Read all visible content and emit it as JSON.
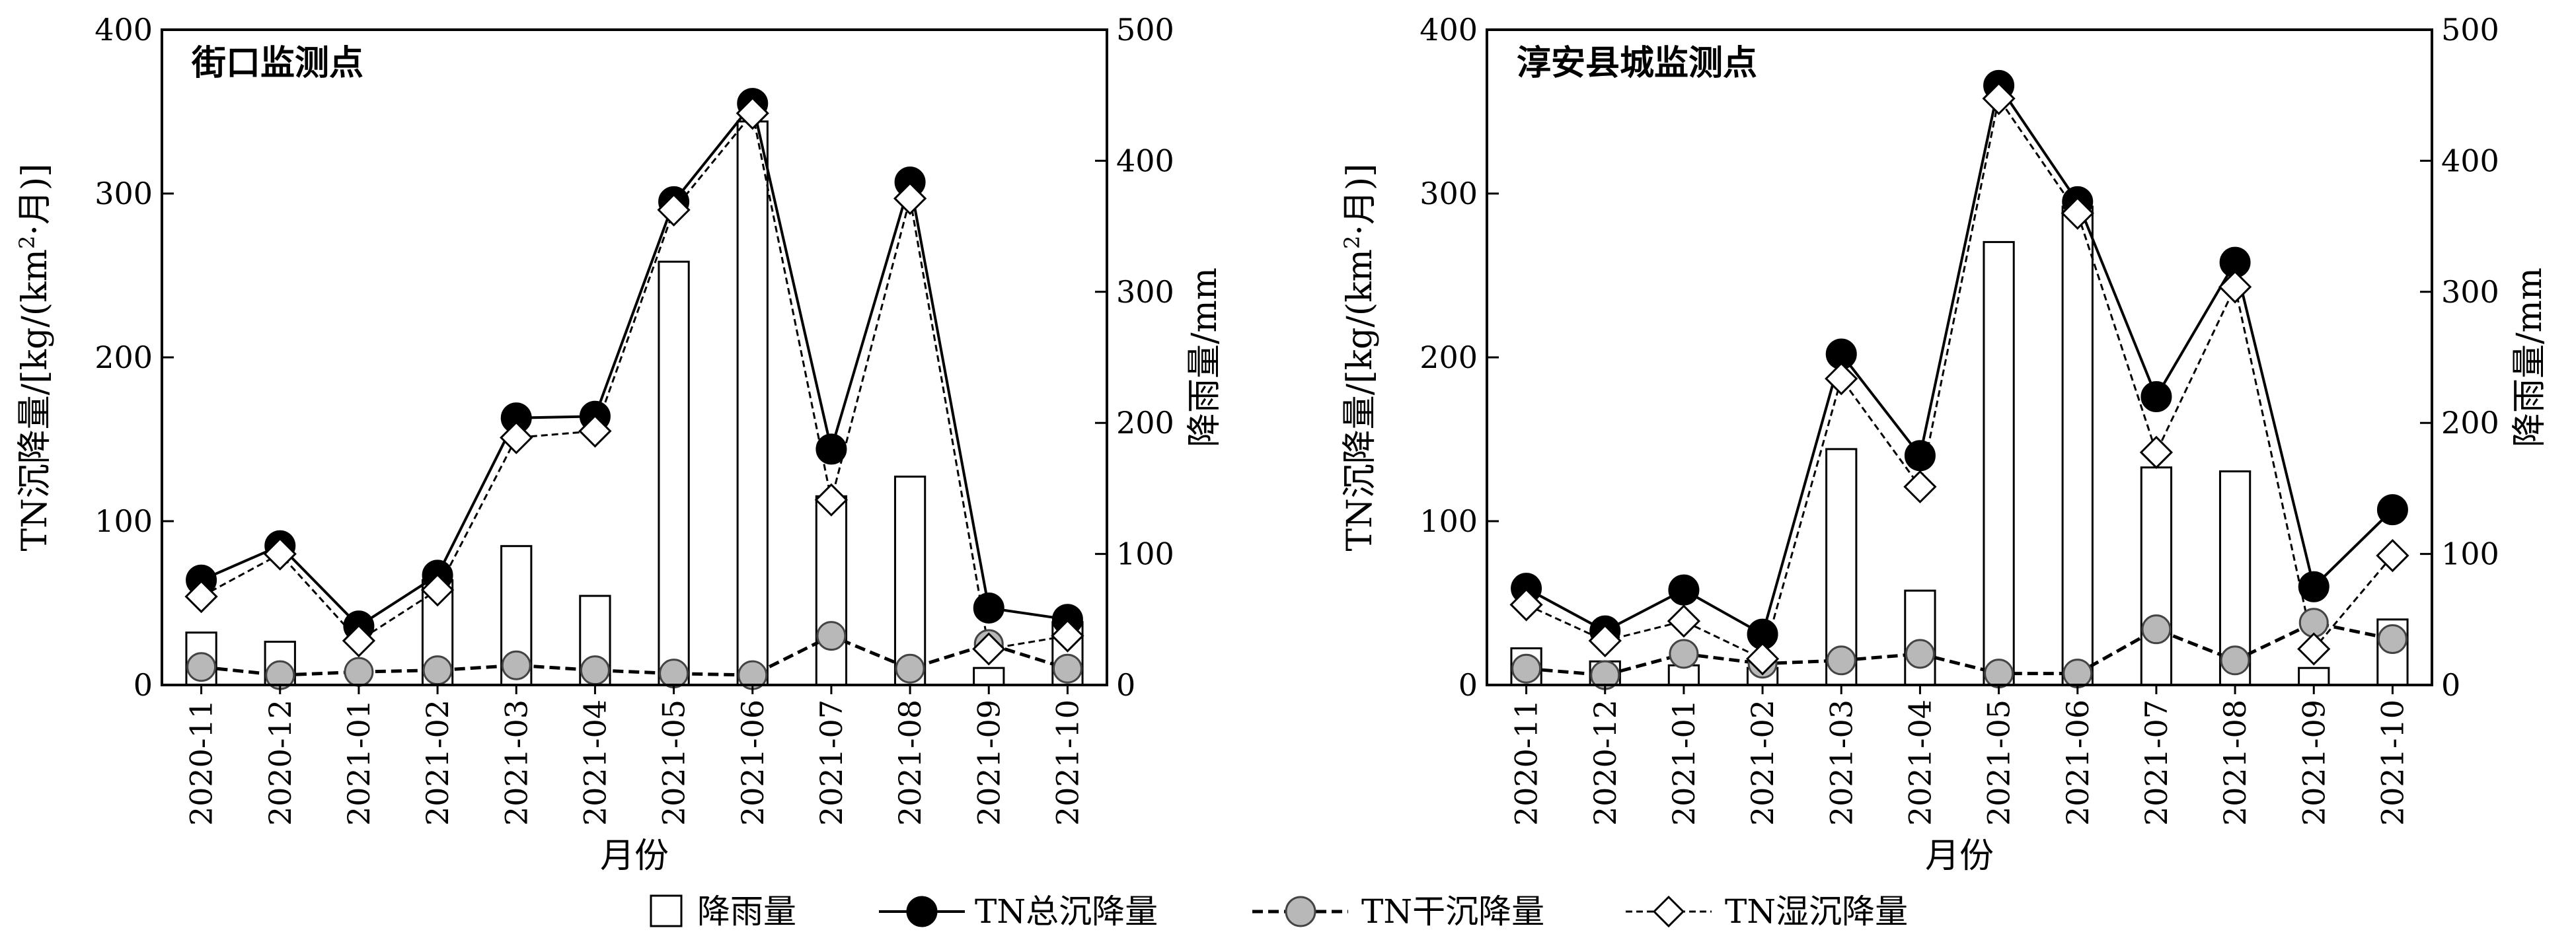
{
  "legend": {
    "items": [
      {
        "label": "降雨量",
        "kind": "bar"
      },
      {
        "label": "TN总沉降量",
        "kind": "total"
      },
      {
        "label": "TN干沉降量",
        "kind": "dry"
      },
      {
        "label": "TN湿沉降量",
        "kind": "wet"
      }
    ]
  },
  "chart_data": [
    {
      "type": "bar+line",
      "title": "街口监测点",
      "xlabel": "月份",
      "ylabel": "TN沉降量/[kg/(km2·月)]",
      "y2label": "降雨量/mm",
      "ylim": [
        0,
        400
      ],
      "yticks": [
        0,
        100,
        200,
        300,
        400
      ],
      "y2lim": [
        0,
        500
      ],
      "y2ticks": [
        0,
        100,
        200,
        300,
        400,
        500
      ],
      "categories": [
        "2020-11",
        "2020-12",
        "2021-01",
        "2021-02",
        "2021-03",
        "2021-04",
        "2021-05",
        "2021-06",
        "2021-07",
        "2021-08",
        "2021-09",
        "2021-10"
      ],
      "rainfall": [
        40,
        33,
        0,
        80,
        106,
        68,
        323,
        430,
        144,
        159,
        13,
        48
      ],
      "total": [
        64,
        85,
        36,
        67,
        163,
        164,
        295,
        355,
        144,
        307,
        47,
        40
      ],
      "dry": [
        11,
        6,
        8,
        9,
        12,
        9,
        7,
        6,
        30,
        10,
        25,
        10
      ],
      "wet": [
        54,
        80,
        27,
        58,
        151,
        155,
        290,
        349,
        113,
        297,
        22,
        30
      ]
    },
    {
      "type": "bar+line",
      "title": "淳安县城监测点",
      "xlabel": "月份",
      "ylabel": "TN沉降量/[kg/(km2·月)]",
      "y2label": "降雨量/mm",
      "ylim": [
        0,
        400
      ],
      "yticks": [
        0,
        100,
        200,
        300,
        400
      ],
      "y2lim": [
        0,
        500
      ],
      "y2ticks": [
        0,
        100,
        200,
        300,
        400,
        500
      ],
      "categories": [
        "2020-11",
        "2020-12",
        "2021-01",
        "2021-02",
        "2021-03",
        "2021-04",
        "2021-05",
        "2021-06",
        "2021-07",
        "2021-08",
        "2021-09",
        "2021-10"
      ],
      "rainfall": [
        28,
        18,
        15,
        13,
        180,
        72,
        338,
        365,
        166,
        163,
        13,
        50
      ],
      "total": [
        59,
        33,
        58,
        31,
        202,
        140,
        366,
        295,
        176,
        258,
        60,
        107
      ],
      "dry": [
        10,
        6,
        19,
        13,
        15,
        19,
        7,
        7,
        34,
        15,
        38,
        28
      ],
      "wet": [
        49,
        27,
        39,
        16,
        187,
        121,
        358,
        288,
        142,
        243,
        22,
        79
      ]
    }
  ]
}
